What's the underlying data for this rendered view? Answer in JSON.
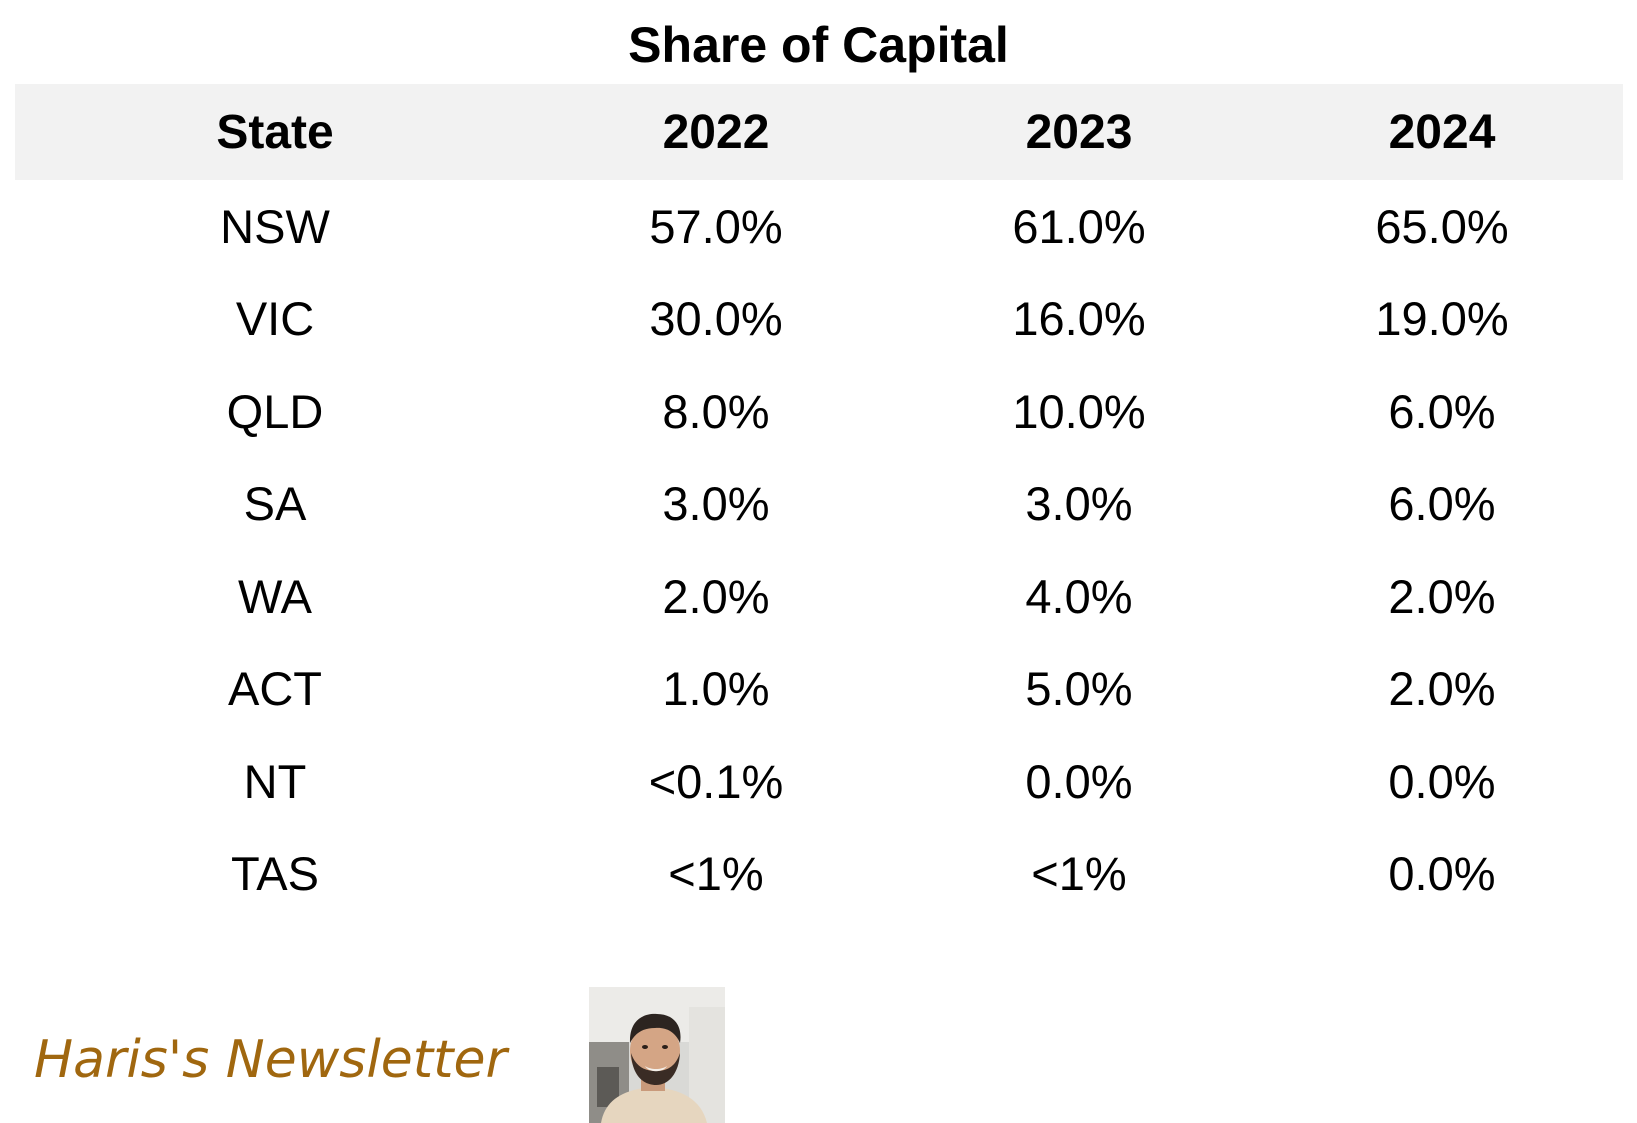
{
  "chart_data": {
    "type": "table",
    "title": "Share of Capital",
    "columns": [
      "State",
      "2022",
      "2023",
      "2024"
    ],
    "rows": [
      [
        "NSW",
        "57.0%",
        "61.0%",
        "65.0%"
      ],
      [
        "VIC",
        "30.0%",
        "16.0%",
        "19.0%"
      ],
      [
        "QLD",
        "8.0%",
        "10.0%",
        "6.0%"
      ],
      [
        "SA",
        "3.0%",
        "3.0%",
        "6.0%"
      ],
      [
        "WA",
        "2.0%",
        "4.0%",
        "2.0%"
      ],
      [
        "ACT",
        "1.0%",
        "5.0%",
        "2.0%"
      ],
      [
        "NT",
        "<0.1%",
        "0.0%",
        "0.0%"
      ],
      [
        "TAS",
        "<1%",
        "<1%",
        "0.0%"
      ]
    ],
    "header_background": "#f2f2f2"
  },
  "branding": {
    "name": "Haris's Newsletter",
    "color": "#a0670f",
    "avatar": "author-photo"
  }
}
